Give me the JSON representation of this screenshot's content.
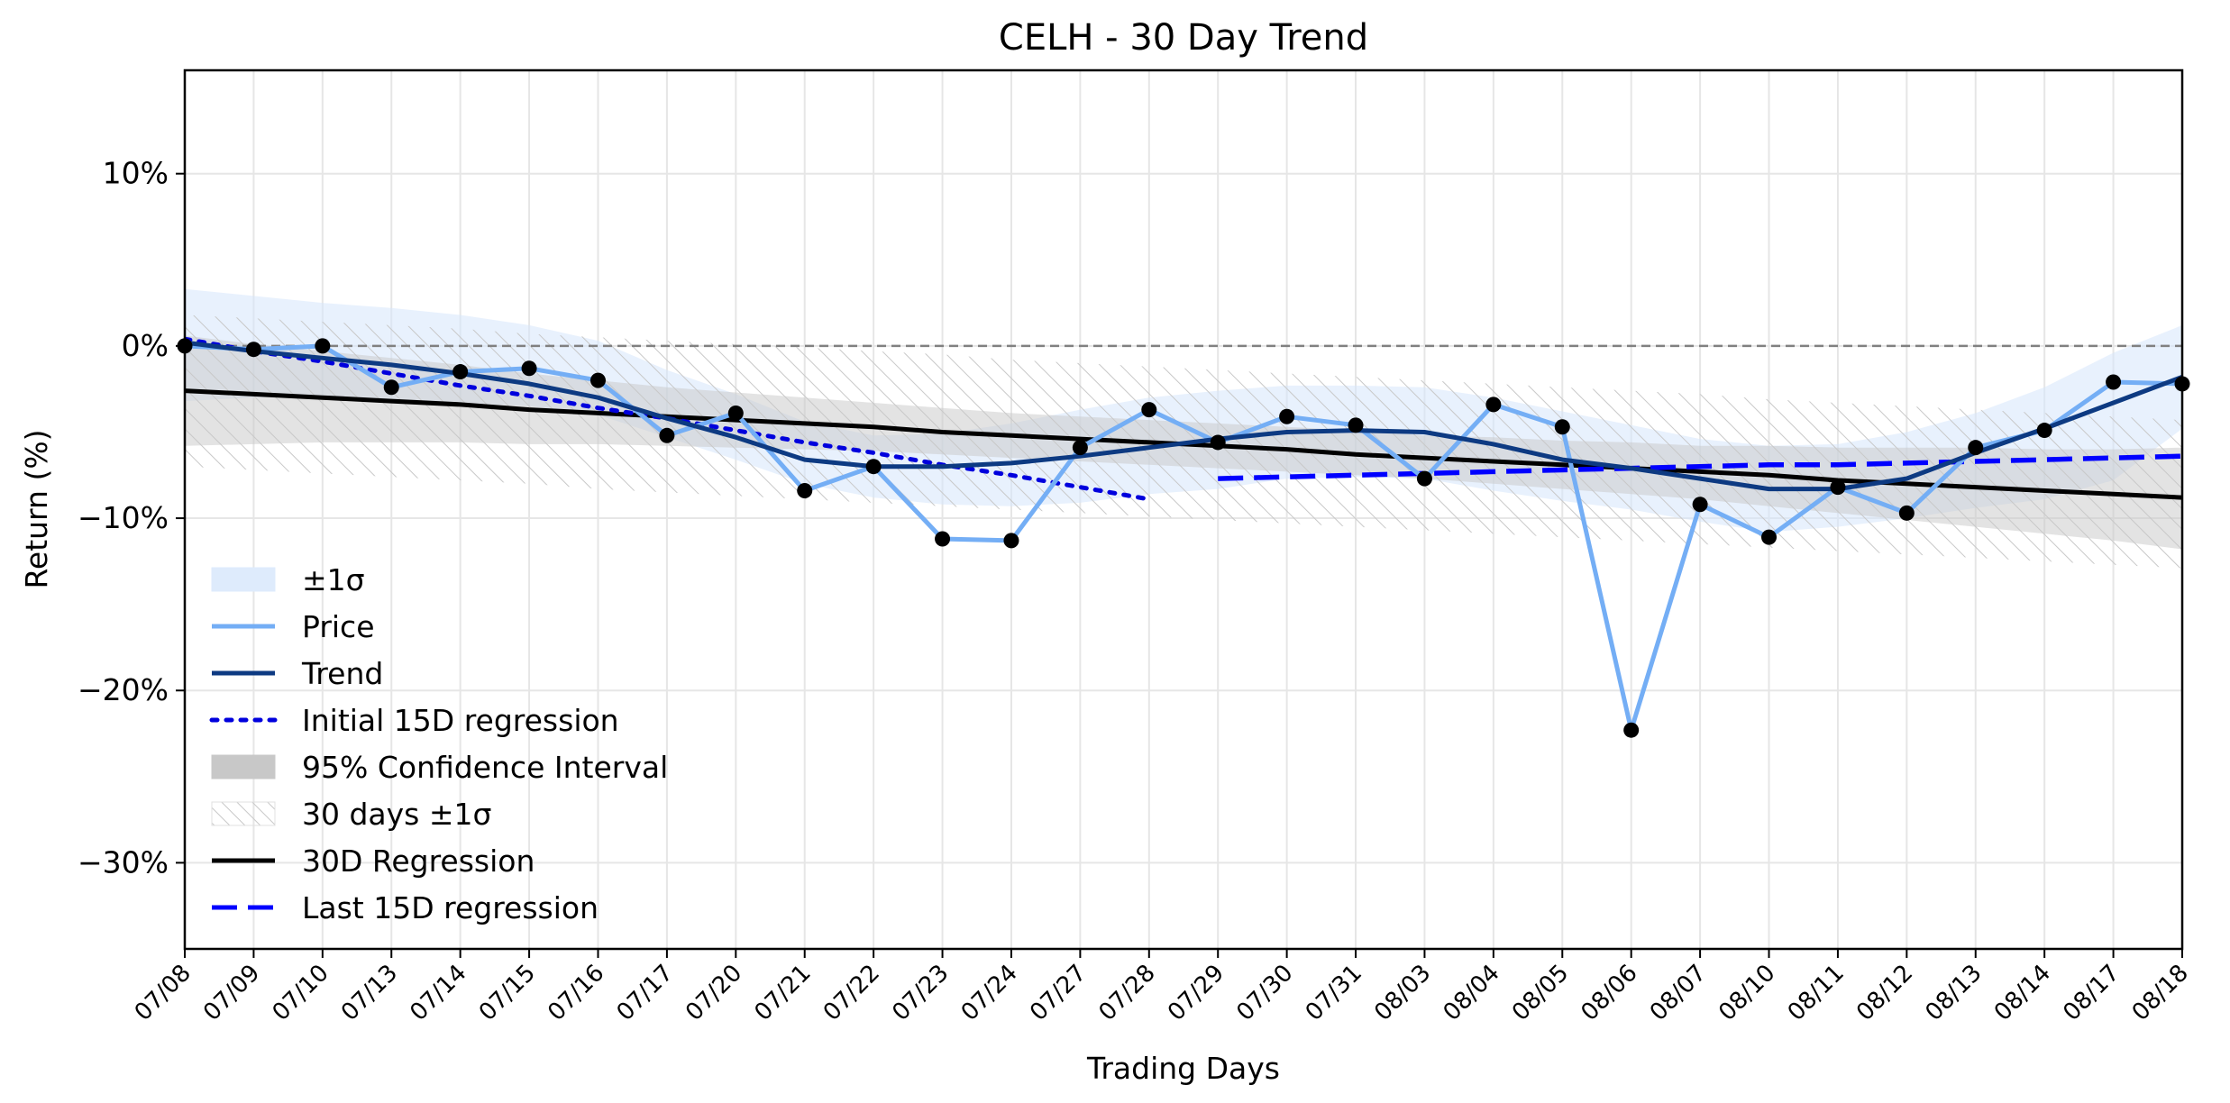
{
  "chart_data": {
    "type": "line",
    "title": "CELH - 30 Day Trend",
    "xlabel": "Trading Days",
    "ylabel": "Return (%)",
    "ylim": [
      -35,
      16
    ],
    "yticks": [
      10,
      0,
      -10,
      -20,
      -30
    ],
    "ytick_labels": [
      "10%",
      "0%",
      "−10%",
      "−20%",
      "−30%"
    ],
    "grid": true,
    "legend_position": "lower-left",
    "categories": [
      "07/08",
      "07/09",
      "07/10",
      "07/13",
      "07/14",
      "07/15",
      "07/16",
      "07/17",
      "07/20",
      "07/21",
      "07/22",
      "07/23",
      "07/24",
      "07/27",
      "07/28",
      "07/29",
      "07/30",
      "07/31",
      "08/03",
      "08/04",
      "08/05",
      "08/06",
      "08/07",
      "08/10",
      "08/11",
      "08/12",
      "08/13",
      "08/14",
      "08/17",
      "08/18"
    ],
    "series": [
      {
        "name": "Price",
        "color": "#74aef5",
        "values": [
          0.0,
          -0.2,
          0.0,
          -2.4,
          -1.5,
          -1.3,
          -2.0,
          -5.2,
          -3.9,
          -8.4,
          -7.0,
          -11.2,
          -11.3,
          -5.9,
          -3.7,
          -5.6,
          -4.1,
          -4.6,
          -7.7,
          -3.4,
          -4.7,
          -22.3,
          -9.2,
          -11.1,
          -8.2,
          -9.7,
          -5.9,
          -4.9,
          -2.1,
          -2.2
        ]
      },
      {
        "name": "Trend",
        "color": "#0d3a82",
        "values": [
          0.2,
          -0.3,
          -0.7,
          -1.1,
          -1.6,
          -2.2,
          -3.0,
          -4.2,
          -5.3,
          -6.6,
          -7.0,
          -7.0,
          -6.8,
          -6.4,
          -5.9,
          -5.4,
          -5.0,
          -4.9,
          -5.0,
          -5.7,
          -6.6,
          -7.1,
          -7.7,
          -8.3,
          -8.3,
          -7.7,
          -6.2,
          -4.8,
          -3.3,
          -1.8
        ]
      },
      {
        "name": "Initial 15D regression",
        "color": "#0000dd",
        "values": [
          0.4,
          -0.3,
          -0.9,
          -1.6,
          -2.3,
          -2.9,
          -3.6,
          -4.2,
          -4.9,
          -5.6,
          -6.2,
          -6.9,
          -7.5,
          -8.2,
          -8.9,
          null,
          null,
          null,
          null,
          null,
          null,
          null,
          null,
          null,
          null,
          null,
          null,
          null,
          null,
          null
        ]
      },
      {
        "name": "30D Regression",
        "color": "#000000",
        "values": [
          -2.6,
          -2.8,
          -3.0,
          -3.2,
          -3.4,
          -3.7,
          -3.9,
          -4.1,
          -4.3,
          -4.5,
          -4.7,
          -5.0,
          -5.2,
          -5.4,
          -5.6,
          -5.8,
          -6.0,
          -6.3,
          -6.5,
          -6.7,
          -6.9,
          -7.1,
          -7.3,
          -7.5,
          -7.8,
          -8.0,
          -8.2,
          -8.4,
          -8.6,
          -8.8
        ]
      },
      {
        "name": "Last 15D regression",
        "color": "#0000ff",
        "values": [
          null,
          null,
          null,
          null,
          null,
          null,
          null,
          null,
          null,
          null,
          null,
          null,
          null,
          null,
          null,
          -7.7,
          -7.6,
          -7.5,
          -7.4,
          -7.3,
          -7.2,
          -7.1,
          -7.0,
          -6.9,
          -6.9,
          -6.8,
          -6.7,
          -6.6,
          -6.5,
          -6.4
        ]
      }
    ],
    "bands": {
      "sigma_1": {
        "name": "±1σ",
        "color": "#d6e6fb",
        "lower": [
          -3.2,
          -3.0,
          -2.9,
          -3.2,
          -3.3,
          -3.5,
          -4.0,
          -5.3,
          -6.6,
          -8.0,
          -8.8,
          -9.2,
          -9.3,
          -9.1,
          -8.6,
          -8.3,
          -7.7,
          -7.6,
          -7.7,
          -8.4,
          -9.0,
          -9.5,
          -10.2,
          -10.8,
          -10.5,
          -10.0,
          -9.4,
          -8.9,
          -7.8,
          -4.8
        ],
        "upper": [
          3.3,
          2.9,
          2.5,
          2.2,
          1.8,
          1.2,
          0.3,
          -1.4,
          -2.8,
          -4.4,
          -5.2,
          -5.1,
          -4.5,
          -3.7,
          -3.0,
          -2.6,
          -2.3,
          -2.3,
          -2.4,
          -3.0,
          -3.8,
          -4.6,
          -5.4,
          -5.8,
          -5.7,
          -5.0,
          -3.9,
          -2.4,
          -0.4,
          1.2
        ]
      },
      "ci_95": {
        "name": "95% Confidence Interval",
        "color": "#c8c8c8",
        "lower": [
          -5.8,
          -5.7,
          -5.6,
          -5.6,
          -5.6,
          -5.7,
          -5.7,
          -5.8,
          -5.9,
          -6.0,
          -6.1,
          -6.3,
          -6.5,
          -6.7,
          -6.9,
          -7.1,
          -7.3,
          -7.5,
          -7.7,
          -8.0,
          -8.3,
          -8.6,
          -8.9,
          -9.3,
          -9.7,
          -10.1,
          -10.5,
          -10.9,
          -11.3,
          -11.8
        ],
        "upper": [
          0.6,
          0.1,
          -0.3,
          -0.7,
          -1.1,
          -1.6,
          -2.0,
          -2.4,
          -2.7,
          -3.0,
          -3.3,
          -3.6,
          -3.9,
          -4.1,
          -4.3,
          -4.5,
          -4.7,
          -4.9,
          -5.2,
          -5.3,
          -5.5,
          -5.6,
          -5.8,
          -5.8,
          -5.9,
          -5.9,
          -5.9,
          -6.0,
          -6.0,
          -5.9
        ]
      },
      "sigma_30d": {
        "name": "30 days ±1σ",
        "color": "#d9d9d9",
        "lower": [
          -7.0,
          -7.2,
          -7.4,
          -7.6,
          -7.8,
          -8.0,
          -8.3,
          -8.5,
          -8.7,
          -8.9,
          -9.1,
          -9.3,
          -9.5,
          -9.7,
          -9.9,
          -10.1,
          -10.3,
          -10.5,
          -10.7,
          -10.9,
          -11.1,
          -11.3,
          -11.5,
          -11.7,
          -11.9,
          -12.1,
          -12.3,
          -12.5,
          -12.7,
          -12.9
        ],
        "upper": [
          1.8,
          1.6,
          1.4,
          1.2,
          1.0,
          0.7,
          0.5,
          0.3,
          0.1,
          -0.1,
          -0.3,
          -0.5,
          -0.8,
          -1.0,
          -1.2,
          -1.4,
          -1.6,
          -1.8,
          -2.0,
          -2.2,
          -2.4,
          -2.6,
          -2.8,
          -3.1,
          -3.3,
          -3.5,
          -3.7,
          -3.9,
          -4.1,
          -4.3
        ]
      }
    },
    "reference_line": {
      "y": 0,
      "style": "dashed",
      "color": "#808080"
    },
    "legend": [
      {
        "label": "±1σ",
        "kind": "fill",
        "color": "#deebfc"
      },
      {
        "label": "Price",
        "kind": "line",
        "color": "#74aef5",
        "dash": "solid"
      },
      {
        "label": "Trend",
        "kind": "line",
        "color": "#0d3a82",
        "dash": "solid"
      },
      {
        "label": "Initial 15D regression",
        "kind": "line",
        "color": "#0000dd",
        "dash": "dotted"
      },
      {
        "label": "95% Confidence Interval",
        "kind": "fill",
        "color": "#c8c8c8"
      },
      {
        "label": "30 days ±1σ",
        "kind": "hatch",
        "color": "#d9d9d9"
      },
      {
        "label": "30D Regression",
        "kind": "line",
        "color": "#000000",
        "dash": "solid"
      },
      {
        "label": "Last 15D regression",
        "kind": "line",
        "color": "#0000ff",
        "dash": "dashed"
      }
    ]
  }
}
